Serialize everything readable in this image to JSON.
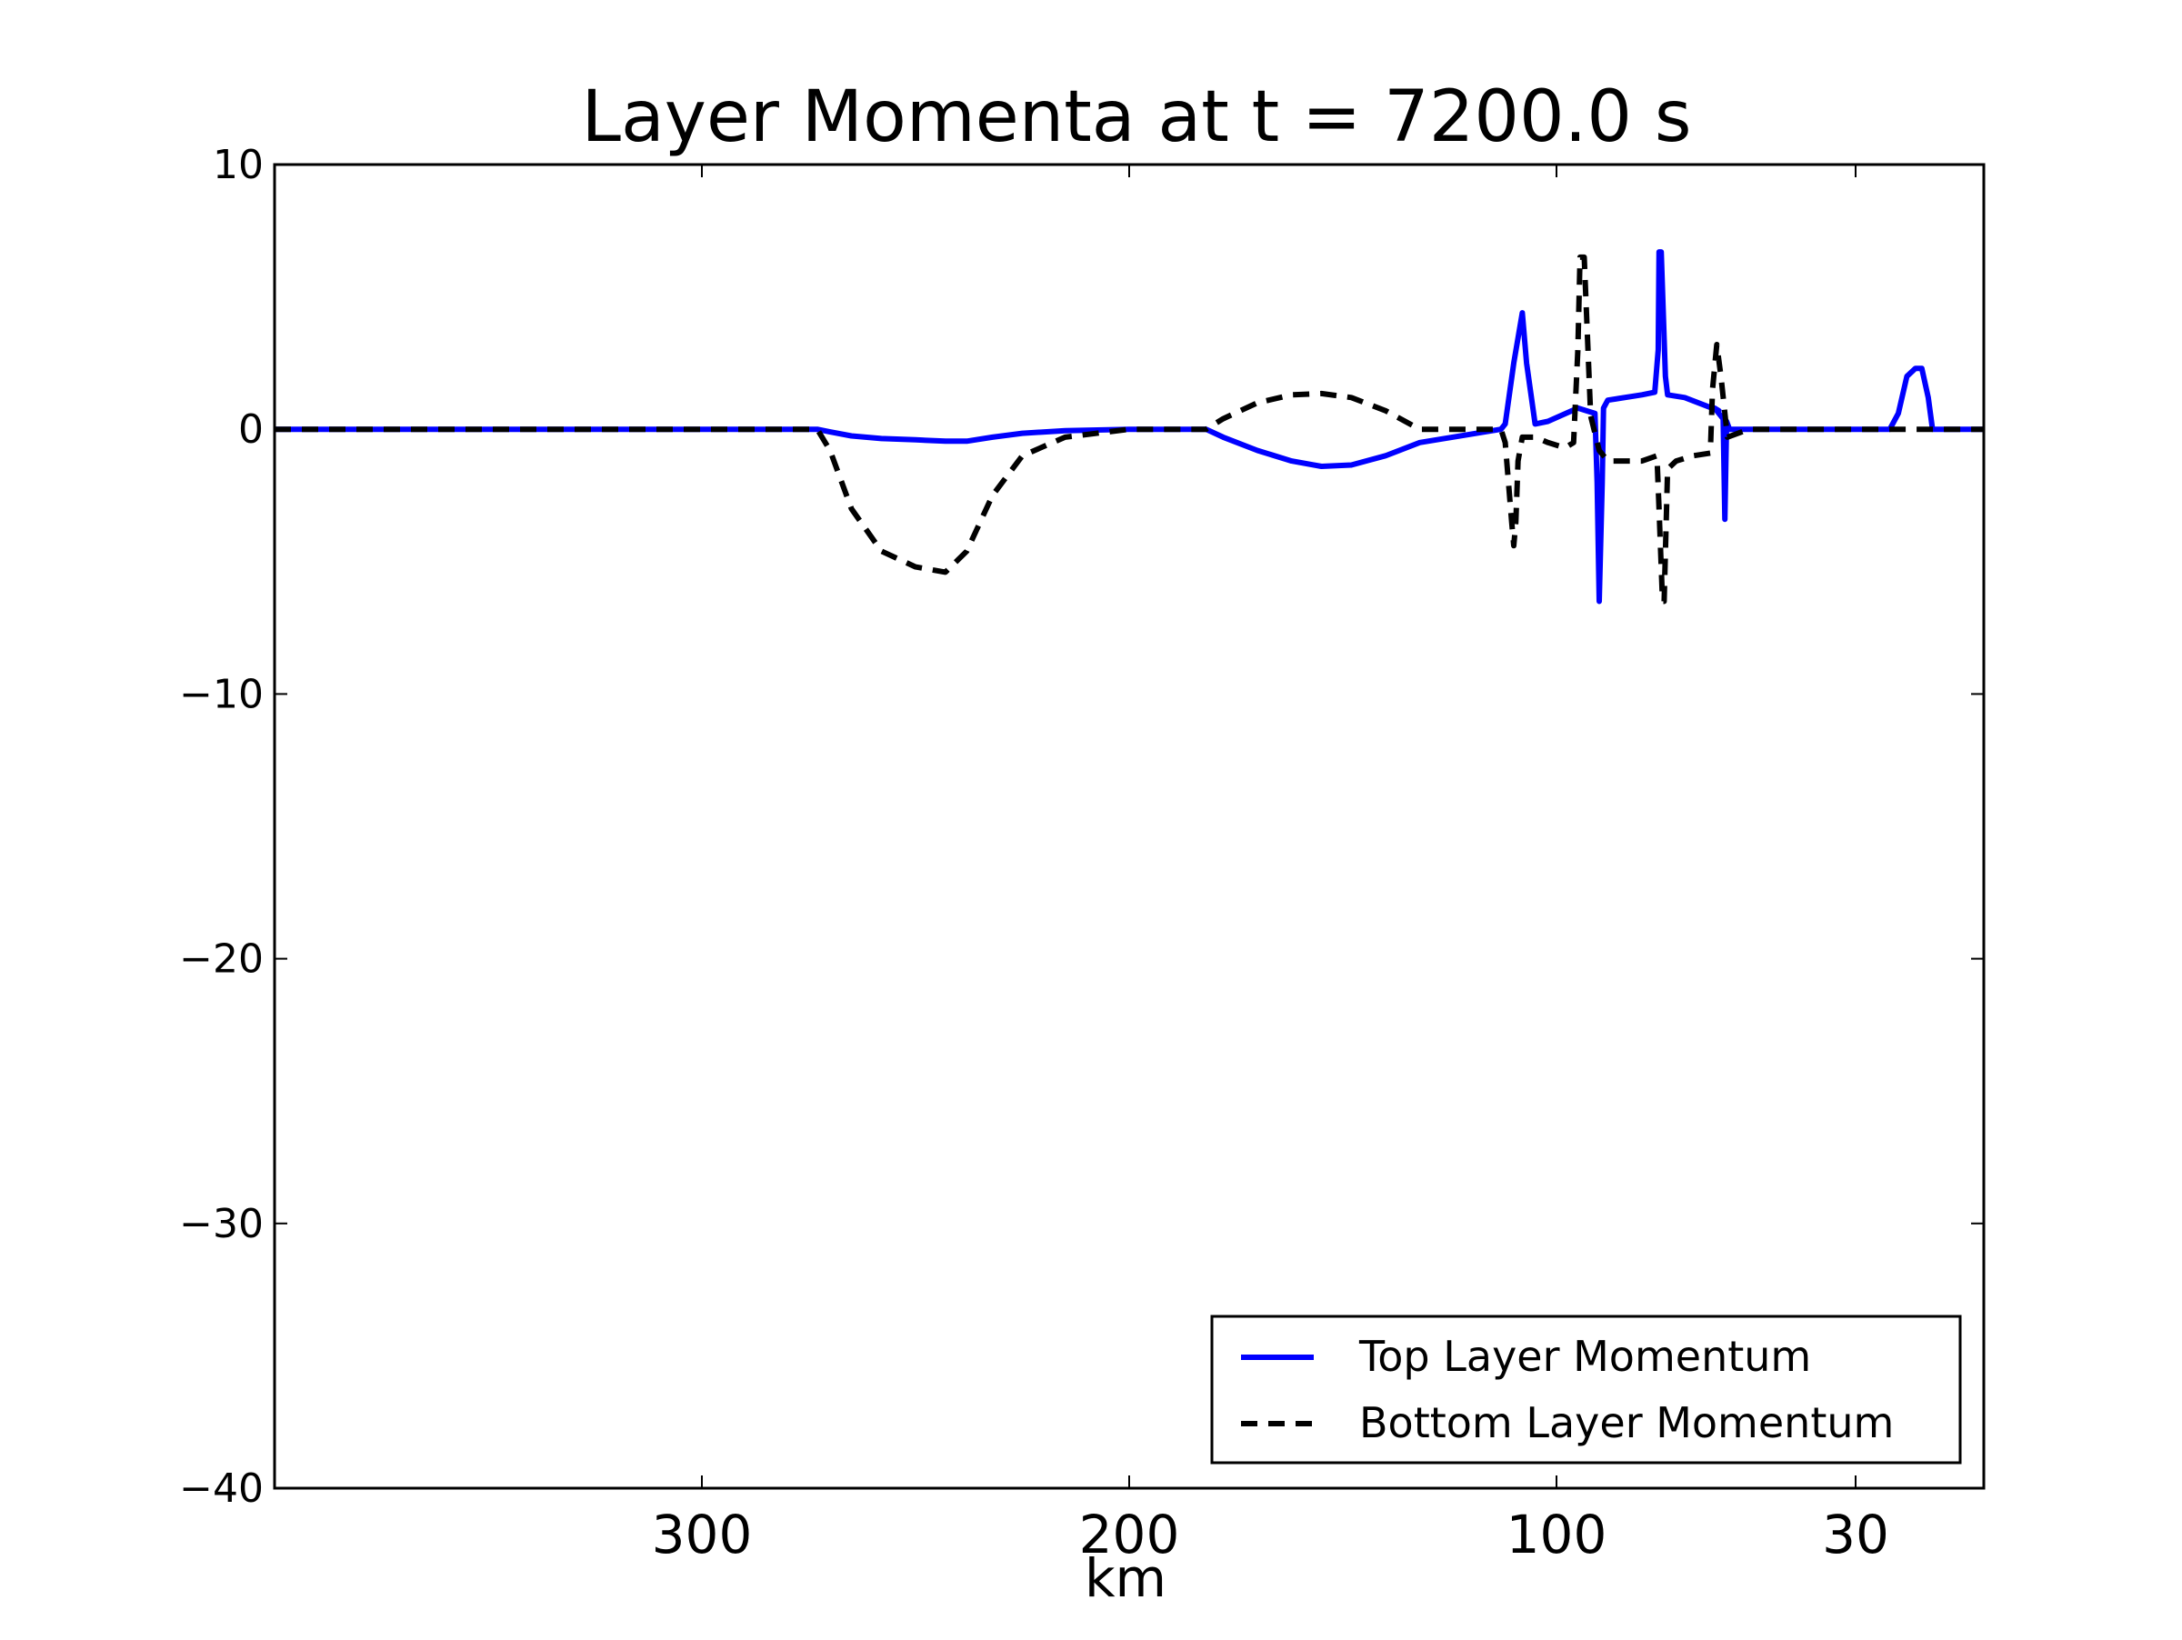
{
  "chart_data": {
    "type": "line",
    "title": "Layer Momenta at t = 7200.0 s",
    "xlabel": "km",
    "ylabel": "",
    "xlim": [
      400,
      0
    ],
    "ylim": [
      -40,
      10
    ],
    "x_direction": "decreasing",
    "xticks": [
      300,
      200,
      100,
      30
    ],
    "yticks": [
      10,
      0,
      -10,
      -20,
      -30,
      -40
    ],
    "ytick_labels": [
      "10",
      "0",
      "−10",
      "−20",
      "−30",
      "−40"
    ],
    "grid": false,
    "legend_position": "lower-right",
    "series": [
      {
        "name": "Top Layer Momentum",
        "color": "#0000ff",
        "line_style": "solid",
        "x": [
          400,
          273,
          270,
          265,
          258,
          250,
          243,
          238,
          232,
          225,
          215,
          200,
          182,
          178,
          170,
          162,
          155,
          148,
          140,
          132,
          113,
          112,
          110,
          108,
          107,
          105,
          102,
          95,
          91,
          90.5,
          90,
          89.3,
          89,
          88,
          80,
          77,
          76.2,
          76,
          75.5,
          74.5,
          74,
          70,
          62,
          63,
          61,
          60.6,
          60.2,
          59.5,
          58,
          55,
          52,
          22,
          20,
          18,
          16,
          14.5,
          13,
          12,
          0
        ],
        "y": [
          0,
          0,
          -0.1,
          -0.25,
          -0.35,
          -0.4,
          -0.45,
          -0.45,
          -0.3,
          -0.15,
          -0.05,
          0,
          0,
          -0.3,
          -0.8,
          -1.2,
          -1.4,
          -1.35,
          -1.0,
          -0.5,
          0,
          0.2,
          2.5,
          4.4,
          2.5,
          0.2,
          0.3,
          0.8,
          0.6,
          -2.0,
          -6.5,
          -2.0,
          0.8,
          1.1,
          1.3,
          1.4,
          3.0,
          6.7,
          6.7,
          2.0,
          1.3,
          1.2,
          0.7,
          0.8,
          0.4,
          -3.4,
          0.3,
          0.0,
          0.0,
          0.0,
          0.0,
          0.0,
          0.6,
          2.0,
          2.3,
          2.3,
          1.2,
          0.0,
          0.0
        ]
      },
      {
        "name": "Bottom Layer Momentum",
        "color": "#000000",
        "line_style": "dashed",
        "x": [
          400,
          273,
          270,
          265,
          258,
          250,
          243,
          238,
          232,
          225,
          215,
          200,
          182,
          178,
          170,
          162,
          155,
          148,
          140,
          132,
          113,
          112,
          110.5,
          110,
          109.5,
          109,
          108,
          105,
          102,
          98,
          96,
          95,
          94.5,
          93.5,
          92,
          90,
          88,
          80,
          76.5,
          76,
          75.2,
          74.8,
          74,
          72,
          68,
          64,
          63.5,
          62.5,
          61.5,
          60,
          55,
          52,
          0
        ],
        "y": [
          0,
          0,
          -0.8,
          -3.0,
          -4.6,
          -5.2,
          -5.4,
          -4.6,
          -2.5,
          -1.0,
          -0.3,
          0,
          0,
          0.4,
          1.0,
          1.3,
          1.35,
          1.2,
          0.7,
          0,
          0,
          -0.5,
          -3.5,
          -4.4,
          -3.5,
          -1.2,
          -0.3,
          -0.3,
          -0.5,
          -0.7,
          -0.5,
          3.0,
          6.5,
          6.5,
          0.5,
          -0.8,
          -1.2,
          -1.2,
          -1.0,
          -3.0,
          -6.5,
          -6.5,
          -1.5,
          -1.2,
          -1.0,
          -0.9,
          1.5,
          3.2,
          2.0,
          -0.3,
          0.0,
          0.0,
          0.0
        ]
      }
    ]
  }
}
